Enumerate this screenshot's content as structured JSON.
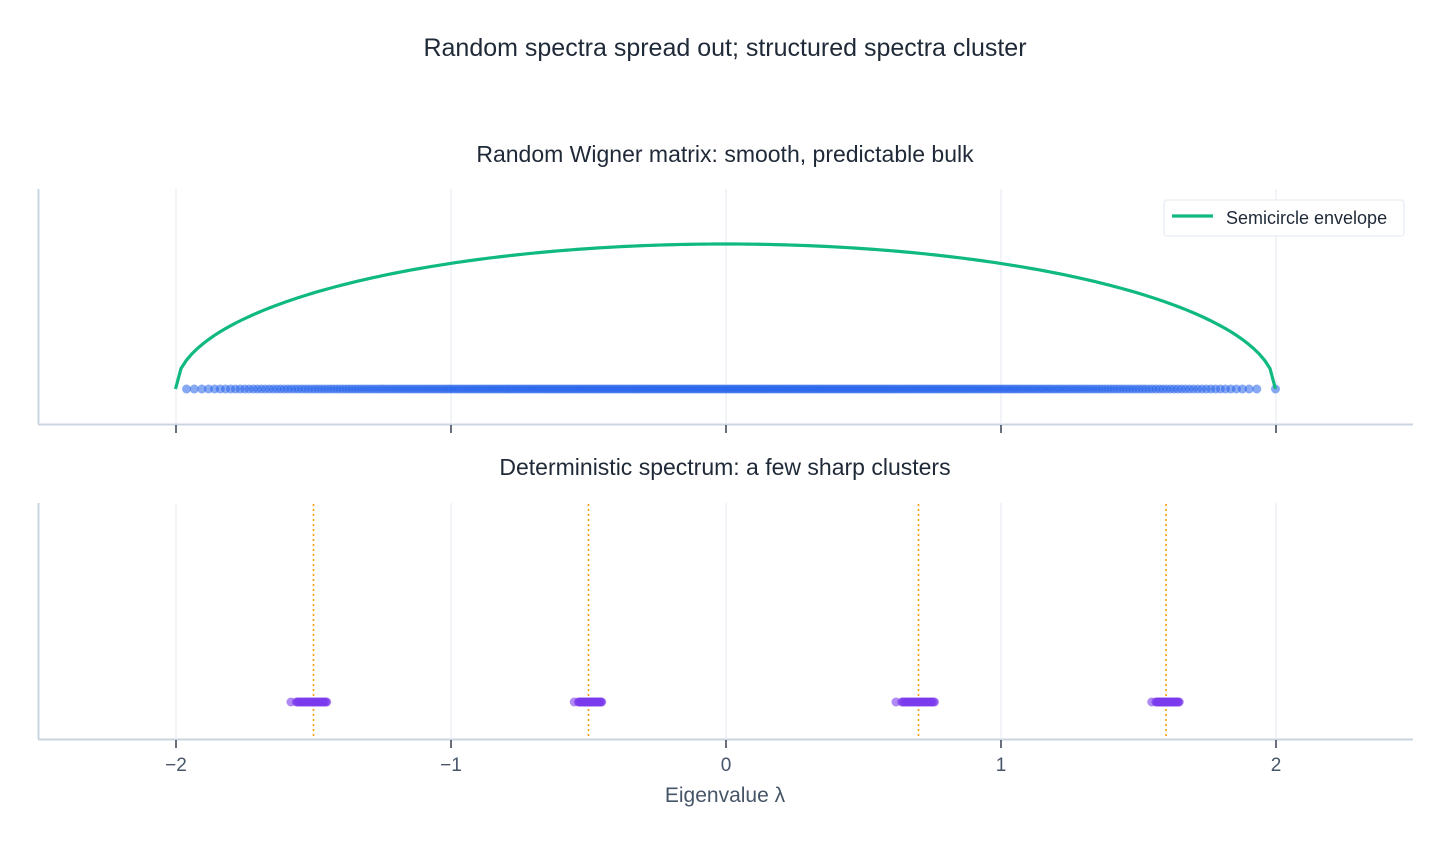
{
  "figure": {
    "title": "Random spectra spread out; structured spectra cluster",
    "xlabel": "Eigenvalue λ"
  },
  "colors": {
    "semicircle": "#10b981",
    "wigner_points": "#2563eb",
    "cluster_points": "#7c3aed",
    "cluster_centers": "#f59e0b",
    "grid": "#e5e9f0",
    "spine": "#cbd5e1",
    "text": "#1f2937",
    "tick_text": "#475569"
  },
  "chart_data": [
    {
      "type": "scatter",
      "title": "Random Wigner matrix: smooth, predictable bulk",
      "xlabel": "",
      "ylabel": "",
      "xlim": [
        -2.5,
        2.5
      ],
      "xticks": [
        -2,
        -1,
        0,
        1,
        2
      ],
      "grid": "vertical",
      "legend": {
        "position": "upper right",
        "entries": [
          "Semicircle envelope"
        ]
      },
      "series": [
        {
          "name": "Semicircle envelope",
          "type": "line",
          "support": [
            -2,
            2
          ],
          "formula": "sqrt(4 - x^2)",
          "peak_x": 0
        },
        {
          "name": "Wigner eigenvalues",
          "type": "scatter",
          "x_range": [
            -2.0,
            2.0
          ],
          "density": "semicircle",
          "n_approx": 400,
          "y": 0
        }
      ]
    },
    {
      "type": "scatter",
      "title": "Deterministic spectrum: a few sharp clusters",
      "xlabel": "Eigenvalue λ",
      "ylabel": "",
      "xlim": [
        -2.5,
        2.5
      ],
      "xticks": [
        -2,
        -1,
        0,
        1,
        2
      ],
      "xtick_labels": [
        "−2",
        "−1",
        "0",
        "1",
        "2"
      ],
      "grid": "vertical",
      "series": [
        {
          "name": "Cluster centers",
          "type": "vline",
          "style": "dotted",
          "x": [
            -1.5,
            -0.5,
            0.7,
            1.6
          ]
        },
        {
          "name": "Clustered eigenvalues",
          "type": "scatter",
          "clusters": [
            {
              "center": -1.5,
              "range": [
                -1.58,
                -1.45
              ]
            },
            {
              "center": -0.5,
              "range": [
                -0.55,
                -0.45
              ]
            },
            {
              "center": 0.7,
              "range": [
                0.62,
                0.76
              ]
            },
            {
              "center": 1.6,
              "range": [
                1.55,
                1.65
              ]
            }
          ]
        }
      ]
    }
  ]
}
